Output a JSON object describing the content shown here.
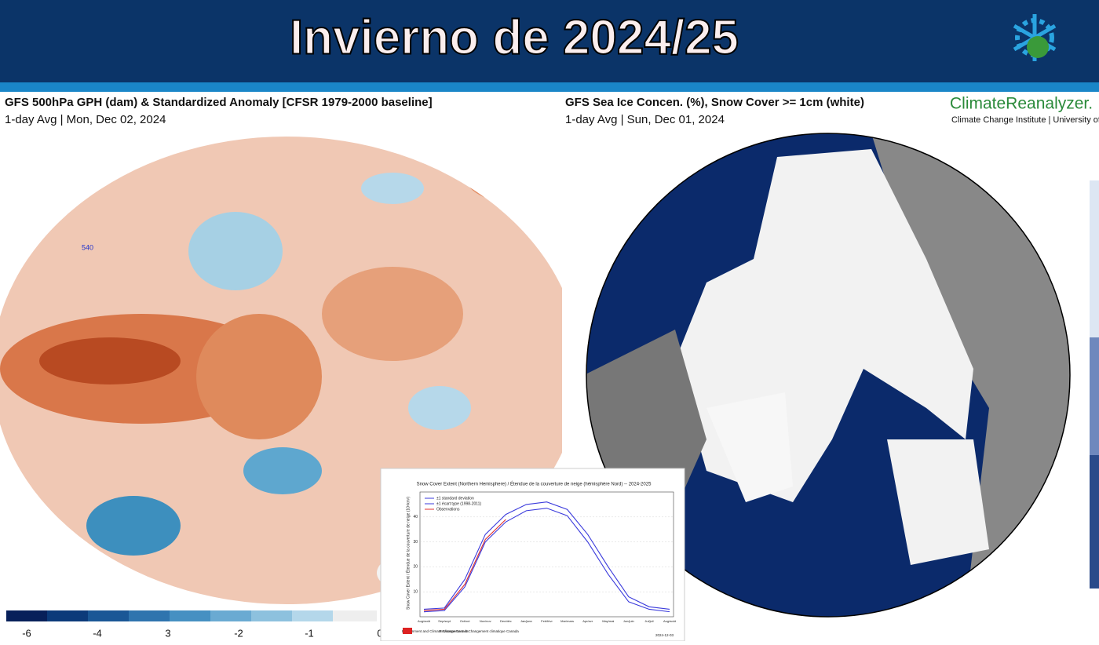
{
  "header": {
    "title": "Invierno de 2024/25"
  },
  "left_map": {
    "title": "GFS 500hPa GPH (dam) & Standardized Anomaly [CFSR 1979-2000 baseline]",
    "subtitle": "1-day Avg | Mon, Dec 02, 2024",
    "contour_label": "540",
    "colorbar_labels": [
      "-6",
      "-4",
      "3",
      "-2",
      "-1",
      "0"
    ]
  },
  "right_map": {
    "title": "GFS Sea Ice Concen. (%), Snow Cover >= 1cm (white)",
    "subtitle": "1-day Avg | Sun, Dec 01, 2024",
    "brand": "ClimateReanalyzer.",
    "brand_sub": "Climate Change Institute | University of"
  },
  "chart_data": {
    "type": "line",
    "title": "Snow Cover Extent (Northern Hemisphere) / Étendue de la couverture de neige (hémisphère Nord) -- 2024-2025",
    "y_label": "Snow Cover Extent / Étendue de la couverture de neige (10⁶km²)",
    "categories": [
      "Aug/août",
      "Sep/sept",
      "Oct/oct",
      "Nov/nov",
      "Dec/déc",
      "Jan/janv",
      "Feb/févr",
      "Mar/mars",
      "Apr/avr",
      "May/mai",
      "Jun/juin",
      "Jul/juil",
      "Aug/août"
    ],
    "series": [
      {
        "name": "±1 standard deviation",
        "color": "#3b3bdc",
        "values": [
          3,
          3.5,
          15,
          33,
          41,
          45,
          46,
          43,
          33,
          20,
          8,
          4,
          3
        ]
      },
      {
        "name": "±1 écart type (1998-2011)",
        "color": "#3b3bdc",
        "values": [
          2,
          2.5,
          12,
          30,
          38,
          42.5,
          43.5,
          40.5,
          30,
          17,
          6,
          3,
          2
        ]
      },
      {
        "name": "Observations",
        "color": "#e03030",
        "values": [
          2.5,
          3,
          13,
          31,
          39,
          null,
          null,
          null,
          null,
          null,
          null,
          null,
          null
        ]
      }
    ],
    "ylim": [
      0,
      50
    ],
    "yticks": [
      10,
      20,
      30,
      40
    ],
    "footer_left": "Environment and Climate Change Canada",
    "footer_mid": "Environnement et Changement climatique Canada",
    "footer_right": "2024-12-03"
  }
}
